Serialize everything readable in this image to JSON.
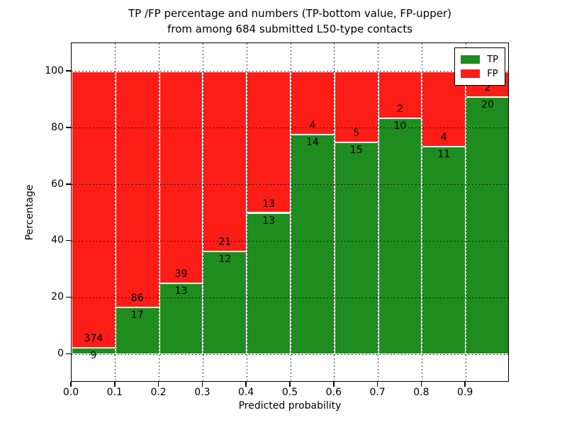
{
  "figure": {
    "title_line1": "TP /FP percentage and numbers (TP-bottom value, FP-upper)",
    "title_line2": "from among 684 submitted L50-type contacts",
    "xlabel": "Predicted probability",
    "ylabel": "Percentage"
  },
  "chart_data": {
    "type": "bar",
    "stacked": true,
    "normalized_to_percent": true,
    "title": "TP /FP percentage and numbers (TP-bottom value, FP-upper) from among 684 submitted L50-type contacts",
    "xlabel": "Predicted probability",
    "ylabel": "Percentage",
    "total_contacts": 684,
    "bin_width": 0.1,
    "categories": [
      "0.0-0.1",
      "0.1-0.2",
      "0.2-0.3",
      "0.3-0.4",
      "0.4-0.5",
      "0.5-0.6",
      "0.6-0.7",
      "0.7-0.8",
      "0.8-0.9",
      "0.9-1.0"
    ],
    "series": [
      {
        "name": "TP",
        "color": "#1f8c1f",
        "counts": [
          9,
          17,
          13,
          12,
          13,
          14,
          15,
          10,
          11,
          20
        ],
        "percent": [
          2.35,
          16.5,
          25.0,
          36.36,
          50.0,
          77.78,
          75.0,
          83.33,
          73.33,
          90.91
        ]
      },
      {
        "name": "FP",
        "color": "#fc1d17",
        "counts": [
          374,
          86,
          39,
          21,
          13,
          4,
          5,
          2,
          4,
          2
        ],
        "percent": [
          97.65,
          83.5,
          75.0,
          63.64,
          50.0,
          22.22,
          25.0,
          16.67,
          26.67,
          9.09
        ]
      }
    ],
    "x_ticks": [
      "0.0",
      "0.1",
      "0.2",
      "0.3",
      "0.4",
      "0.5",
      "0.6",
      "0.7",
      "0.8",
      "0.9"
    ],
    "y_ticks": [
      "0",
      "20",
      "40",
      "60",
      "80",
      "100"
    ],
    "xlim": [
      0.0,
      1.0
    ],
    "ylim": [
      -10,
      110
    ],
    "grid": "dotted black, horizontal every 20%, vertical every 0.1",
    "legend": {
      "position": "upper right",
      "entries": [
        "TP",
        "FP"
      ]
    }
  },
  "colors": {
    "tp": "#1f8c1f",
    "fp": "#fc1d17",
    "background": "#ffffff",
    "frame": "#000000",
    "text": "#000000"
  }
}
